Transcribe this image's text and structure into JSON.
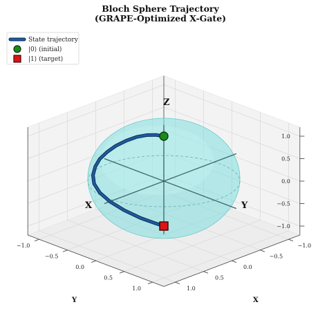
{
  "chart_data": {
    "type": "line",
    "title": "Bloch Sphere Trajectory",
    "subtitle": "(GRAPE-Optimized X-Gate)",
    "xlabel": "X",
    "ylabel": "Y",
    "sphere_axis_labels": {
      "x": "X",
      "y": "Y",
      "z": "Z"
    },
    "xlim": [
      -1.2,
      1.2
    ],
    "ylim": [
      -1.2,
      1.2
    ],
    "zlim": [
      -1.2,
      1.2
    ],
    "x_ticks": [
      "1.0",
      "0.5",
      "0.0",
      "−0.5",
      "−1.0"
    ],
    "y_ticks": [
      "−1.0",
      "−0.5",
      "0.0",
      "0.5",
      "1.0"
    ],
    "z_ticks": [
      "−1.0",
      "−0.5",
      "0.0",
      "0.5",
      "1.0"
    ],
    "grid": true,
    "legend": {
      "position": "top-left",
      "entries": [
        "State trajectory",
        "|0⟩ (initial)",
        "|1⟩ (target)"
      ]
    },
    "series": [
      {
        "name": "State trajectory",
        "x": [
          0.0,
          0.02,
          0.05,
          0.1,
          0.16,
          0.22,
          0.28,
          0.33,
          0.36,
          0.38,
          0.37,
          0.33,
          0.26,
          0.17,
          0.08,
          0.02,
          0.0
        ],
        "y": [
          0.0,
          -0.12,
          -0.25,
          -0.38,
          -0.5,
          -0.62,
          -0.72,
          -0.8,
          -0.85,
          -0.87,
          -0.86,
          -0.8,
          -0.69,
          -0.53,
          -0.33,
          -0.12,
          0.0
        ],
        "z": [
          1.0,
          0.98,
          0.93,
          0.85,
          0.74,
          0.6,
          0.44,
          0.27,
          0.09,
          -0.1,
          -0.29,
          -0.48,
          -0.66,
          -0.82,
          -0.94,
          -0.99,
          -1.0
        ]
      }
    ],
    "markers": [
      {
        "name": "|0⟩ (initial)",
        "x": 0,
        "y": 0,
        "z": 1,
        "color": "#1a8a1a",
        "shape": "circle"
      },
      {
        "name": "|1⟩ (target)",
        "x": 0,
        "y": 0,
        "z": -1,
        "color": "#e01414",
        "shape": "square"
      }
    ],
    "colors": {
      "trajectory": "#1f5c9e",
      "trajectory_edge": "#0a2a55",
      "sphere": "#7fdede",
      "axes": "#2d5b5e"
    }
  }
}
